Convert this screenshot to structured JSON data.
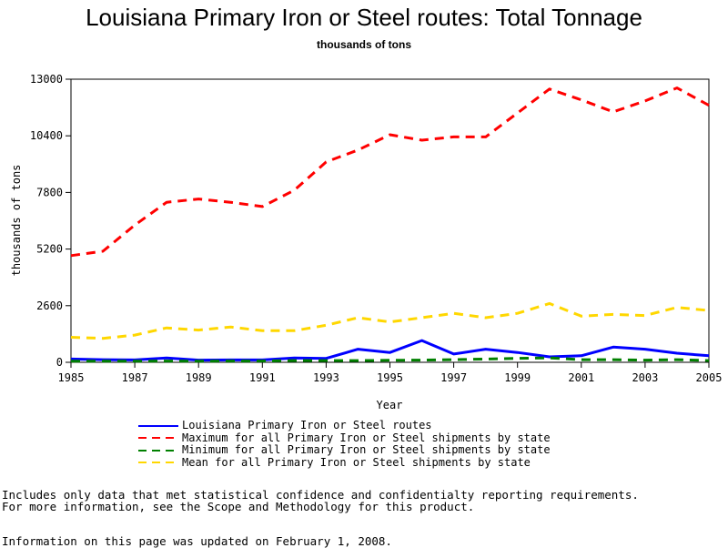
{
  "chart_data": {
    "type": "line",
    "title": "Louisiana Primary Iron or Steel routes: Total Tonnage",
    "subtitle": "thousands of tons",
    "xlabel": "Year",
    "ylabel": "thousands of tons",
    "xlim": [
      1985,
      2005
    ],
    "ylim": [
      0,
      13000
    ],
    "x_ticks": [
      "1985",
      "1987",
      "1989",
      "1991",
      "1993",
      "1995",
      "1997",
      "1999",
      "2001",
      "2003",
      "2005"
    ],
    "y_ticks": [
      "0",
      "2600",
      "5200",
      "7800",
      "10400",
      "13000"
    ],
    "x": [
      1985,
      1986,
      1987,
      1988,
      1989,
      1990,
      1991,
      1992,
      1993,
      1994,
      1995,
      1996,
      1997,
      1998,
      1999,
      2000,
      2001,
      2002,
      2003,
      2004,
      2005
    ],
    "series": [
      {
        "name": "Louisiana Primary Iron or Steel routes",
        "color": "#0000ff",
        "style": "solid",
        "values": [
          150,
          120,
          110,
          200,
          100,
          110,
          110,
          200,
          180,
          600,
          450,
          1000,
          380,
          600,
          450,
          250,
          300,
          700,
          600,
          420,
          300
        ]
      },
      {
        "name": "Maximum for all Primary Iron or Steel shipments by state",
        "color": "#ff0000",
        "style": "dashed",
        "values": [
          4900,
          5100,
          6300,
          7350,
          7500,
          7350,
          7150,
          7900,
          9200,
          9750,
          10450,
          10200,
          10350,
          10350,
          11450,
          12550,
          12050,
          11500,
          12000,
          12600,
          11800
        ]
      },
      {
        "name": "Minimum for all Primary Iron or Steel shipments by state",
        "color": "#008000",
        "style": "dashed",
        "values": [
          50,
          50,
          50,
          60,
          50,
          60,
          60,
          80,
          80,
          80,
          90,
          100,
          120,
          150,
          180,
          200,
          120,
          120,
          100,
          120,
          80
        ]
      },
      {
        "name": "Mean for all Primary Iron or Steel shipments by state",
        "color": "#ffd700",
        "style": "dashed",
        "values": [
          1150,
          1100,
          1250,
          1580,
          1480,
          1620,
          1450,
          1450,
          1700,
          2050,
          1850,
          2050,
          2250,
          2050,
          2250,
          2700,
          2120,
          2200,
          2150,
          2520,
          2380
        ]
      }
    ]
  },
  "footnotes": {
    "line1": "Includes only data that met statistical confidence and confidentialty reporting requirements.",
    "line2": "For more information, see the Scope and Methodology for this product.",
    "line3": "Information on this page was updated on February 1, 2008."
  }
}
